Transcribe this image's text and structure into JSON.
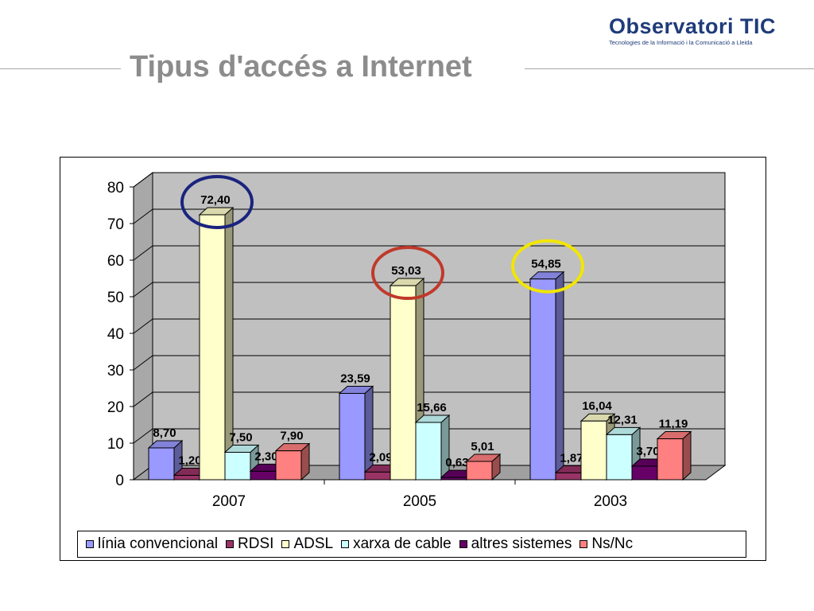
{
  "title": "Tipus d'accés a Internet",
  "logo": {
    "name": "Observatori TIC",
    "tagline": "Tecnologies de la Informació i la Comunicació a Lleida"
  },
  "chart_data": {
    "type": "bar",
    "categories": [
      "2007",
      "2005",
      "2003"
    ],
    "ylim": [
      0,
      80
    ],
    "yticks": [
      0,
      10,
      20,
      30,
      40,
      50,
      60,
      70,
      80
    ],
    "grid": true,
    "three_d": true,
    "legend_position": "bottom",
    "series": [
      {
        "name": "línia convencional",
        "color": "#9999ff",
        "values": [
          8.7,
          23.59,
          54.85
        ],
        "labels": [
          "8,70",
          "23,59",
          "54,85"
        ]
      },
      {
        "name": "RDSI",
        "color": "#993366",
        "values": [
          1.2,
          2.09,
          1.87
        ],
        "labels": [
          "1,20",
          "2,09",
          "1,87"
        ]
      },
      {
        "name": "ADSL",
        "color": "#ffffcc",
        "values": [
          72.4,
          53.03,
          16.04
        ],
        "labels": [
          "72,40",
          "53,03",
          "16,04"
        ]
      },
      {
        "name": "xarxa de cable",
        "color": "#ccffff",
        "values": [
          7.5,
          15.66,
          12.31
        ],
        "labels": [
          "7,50",
          "15,66",
          "12,31"
        ]
      },
      {
        "name": "altres sistemes",
        "color": "#660066",
        "values": [
          2.3,
          0.63,
          3.7
        ],
        "labels": [
          "2,30",
          "0,63",
          "3,70"
        ]
      },
      {
        "name": "Ns/Nc",
        "color": "#ff8080",
        "values": [
          7.9,
          5.01,
          11.19
        ],
        "labels": [
          "7,90",
          "5,01",
          "11,19"
        ]
      }
    ],
    "annotations": [
      {
        "type": "circle",
        "series": "ADSL",
        "category": "2007",
        "color": "#1a237e"
      },
      {
        "type": "circle",
        "series": "ADSL",
        "category": "2005",
        "color": "#c0392b"
      },
      {
        "type": "circle",
        "series": "línia convencional",
        "category": "2003",
        "color": "#f2e600"
      }
    ],
    "colors": {
      "wall": "#c0c0c0",
      "floor": "#a0a0a0",
      "gridline": "#000000"
    }
  }
}
